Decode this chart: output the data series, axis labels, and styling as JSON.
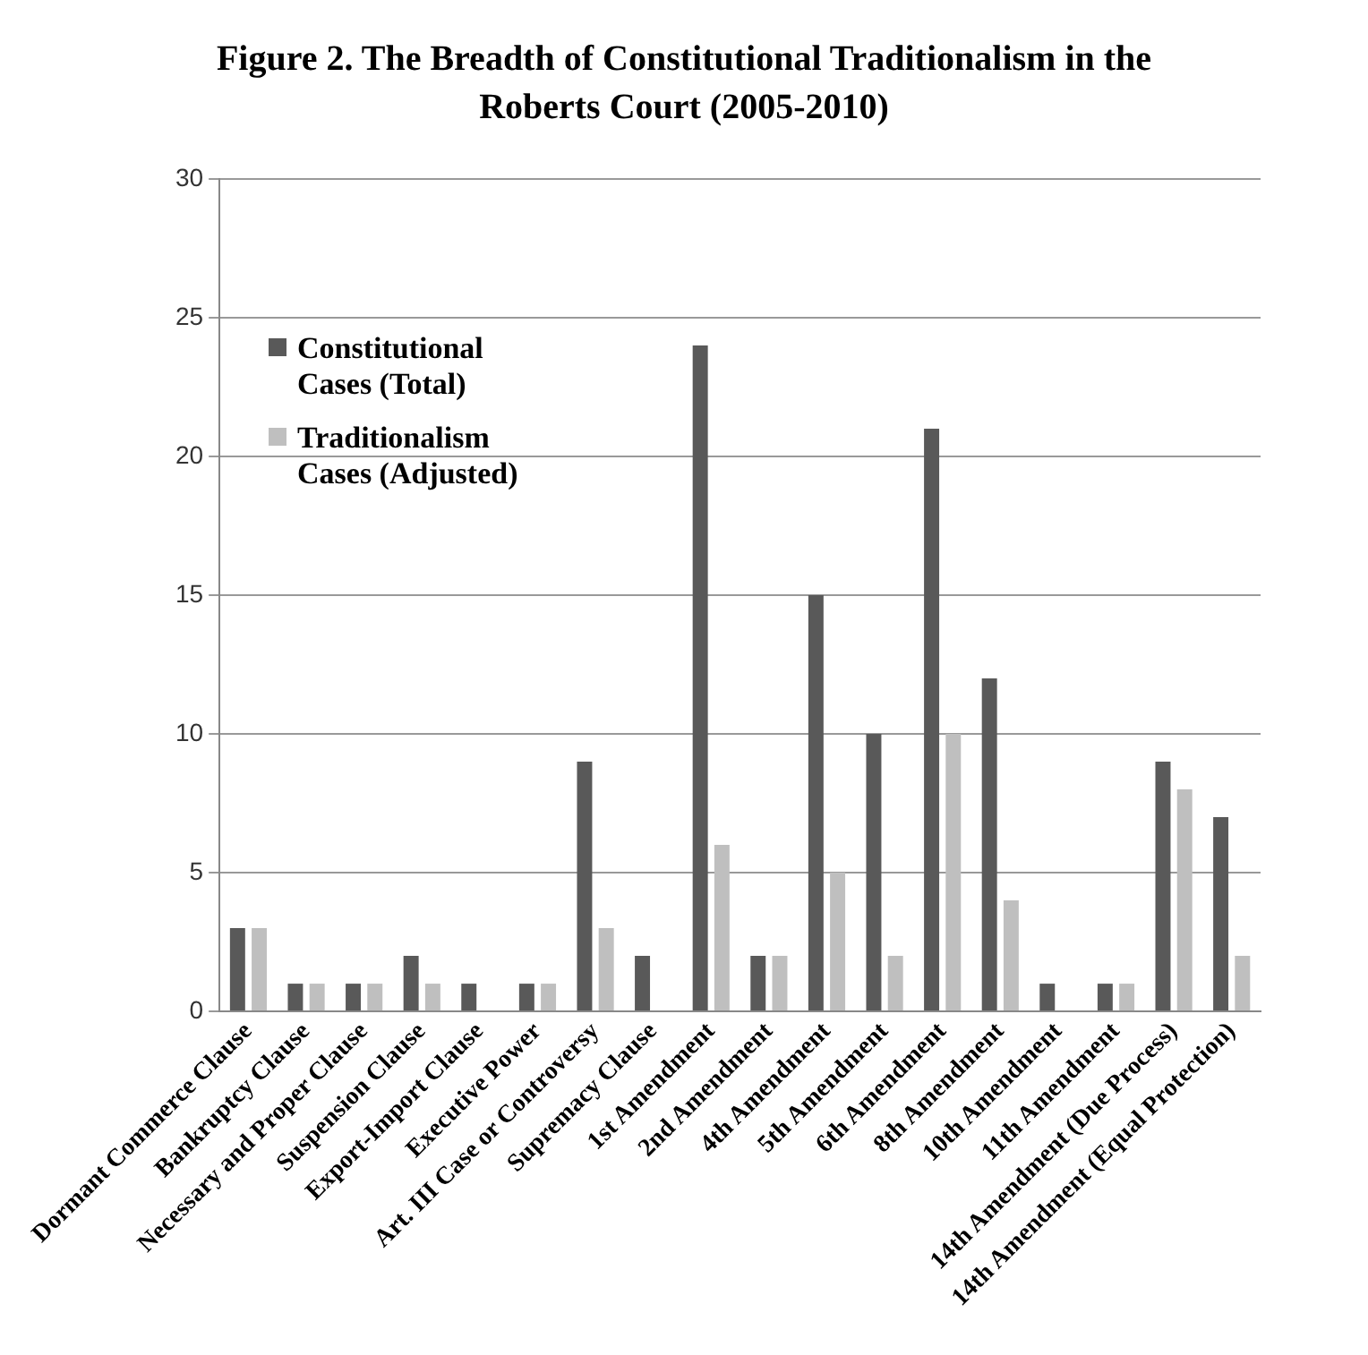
{
  "chart_data": {
    "type": "bar",
    "title": "Figure 2. The Breadth of Constitutional Traditionalism in the Roberts Court (2005-2010)",
    "categories": [
      "Dormant Commerce Clause",
      "Bankruptcy Clause",
      "Necessary and Proper Clause",
      "Suspension Clause",
      "Export-Import Clause",
      "Executive Power",
      "Art. III Case or Controversy",
      "Supremacy Clause",
      "1st Amendment",
      "2nd Amendment",
      "4th Amendment",
      "5th Amendment",
      "6th Amendment",
      "8th Amendment",
      "10th Amendment",
      "11th Amendment",
      "14th Amendment (Due Process)",
      "14th Amendment (Equal Protection)"
    ],
    "series": [
      {
        "name": "Constitutional Cases (Total)",
        "color": "#595959",
        "values": [
          3,
          1,
          1,
          2,
          1,
          1,
          9,
          2,
          24,
          2,
          15,
          10,
          21,
          12,
          1,
          1,
          9,
          7
        ]
      },
      {
        "name": "Traditionalism Cases (Adjusted)",
        "color": "#bfbfbf",
        "values": [
          3,
          1,
          1,
          1,
          0,
          1,
          3,
          0,
          6,
          2,
          5,
          2,
          10,
          4,
          0,
          1,
          8,
          2
        ]
      }
    ],
    "ylim": [
      0,
      30
    ],
    "yticks": [
      0,
      5,
      10,
      15,
      20,
      25,
      30
    ],
    "grid": "y",
    "legend": "top left"
  }
}
